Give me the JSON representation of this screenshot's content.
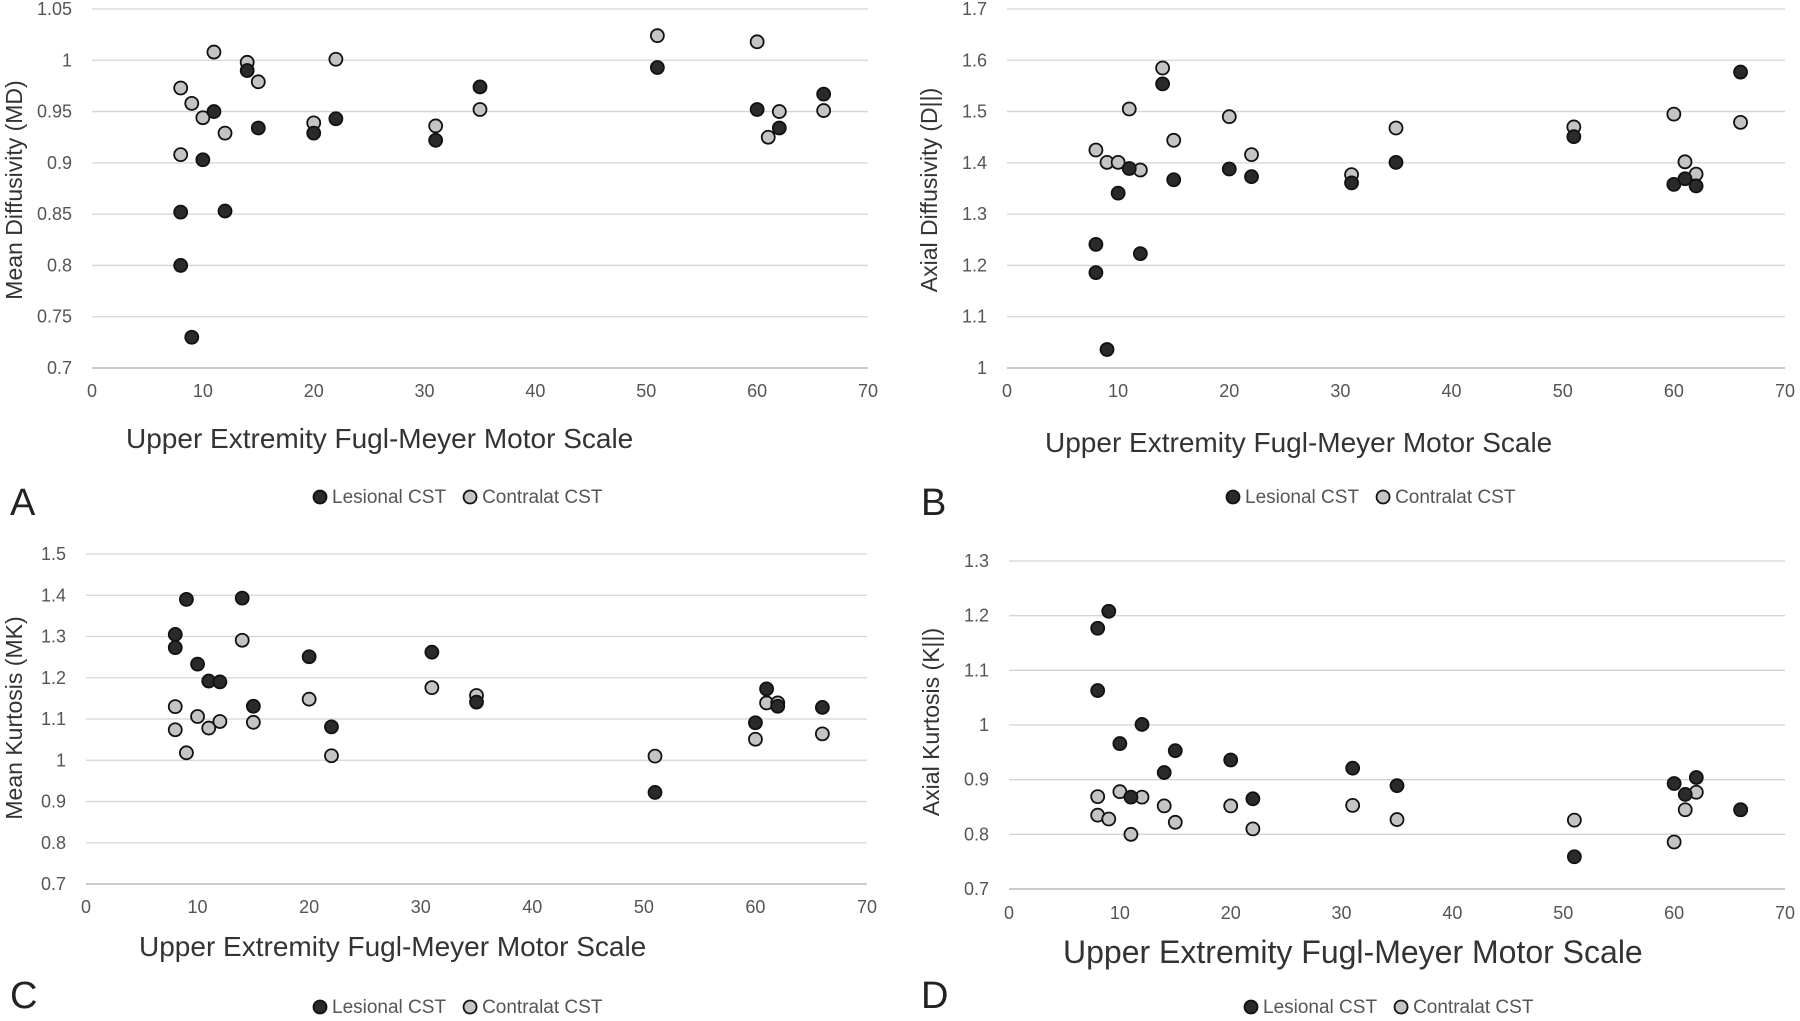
{
  "colors": {
    "lesional": "#2a2a2a",
    "contralat": "#c4c4c4",
    "marker_stroke": "#111111",
    "grid": "#d4d4d4",
    "axis": "#bdbdbd",
    "tick_text": "#555555",
    "label_text": "#333333"
  },
  "chart_data": [
    {
      "panel_letter": "A",
      "type": "scatter",
      "title": "",
      "xlabel": "Upper Extremity  Fugl-Meyer Motor Scale",
      "ylabel": "Mean Diffusivity (MD)",
      "xlim": [
        0,
        70
      ],
      "ylim": [
        0.7,
        1.05
      ],
      "xticks": [
        0,
        10,
        20,
        30,
        40,
        50,
        60,
        70
      ],
      "yticks": [
        "0.7",
        "0.75",
        "0.8",
        "0.85",
        "0.9",
        "0.95",
        "1",
        "1.05"
      ],
      "grid": "horizontal",
      "legend_position": "bottom",
      "series": [
        {
          "name": "Lesional CST",
          "color_key": "lesional",
          "points": [
            [
              8,
              0.852
            ],
            [
              8,
              0.8
            ],
            [
              9,
              0.73
            ],
            [
              10,
              0.903
            ],
            [
              11,
              0.95
            ],
            [
              12,
              0.853
            ],
            [
              14,
              0.99
            ],
            [
              15,
              0.934
            ],
            [
              20,
              0.929
            ],
            [
              22,
              0.943
            ],
            [
              31,
              0.922
            ],
            [
              35,
              0.974
            ],
            [
              51,
              0.993
            ],
            [
              60,
              0.952
            ],
            [
              62,
              0.934
            ],
            [
              66,
              0.967
            ]
          ]
        },
        {
          "name": "Contralat CST",
          "color_key": "contralat",
          "points": [
            [
              8,
              0.973
            ],
            [
              8,
              0.908
            ],
            [
              9,
              0.958
            ],
            [
              10,
              0.944
            ],
            [
              11,
              1.008
            ],
            [
              12,
              0.929
            ],
            [
              14,
              0.998
            ],
            [
              15,
              0.979
            ],
            [
              20,
              0.939
            ],
            [
              22,
              1.001
            ],
            [
              31,
              0.936
            ],
            [
              35,
              0.952
            ],
            [
              51,
              1.024
            ],
            [
              60,
              1.018
            ],
            [
              61,
              0.925
            ],
            [
              62,
              0.95
            ],
            [
              66,
              0.951
            ]
          ]
        }
      ]
    },
    {
      "panel_letter": "B",
      "type": "scatter",
      "title": "",
      "xlabel": "Upper Extremity  Fugl-Meyer Motor Scale",
      "ylabel": "Axial Diffusivity (D||)",
      "xlim": [
        0,
        70
      ],
      "ylim": [
        1.0,
        1.7
      ],
      "xticks": [
        0,
        10,
        20,
        30,
        40,
        50,
        60,
        70
      ],
      "yticks": [
        "1",
        "1.1",
        "1.2",
        "1.3",
        "1.4",
        "1.5",
        "1.6",
        "1.7"
      ],
      "grid": "horizontal",
      "legend_position": "bottom",
      "series": [
        {
          "name": "Lesional CST",
          "color_key": "lesional",
          "points": [
            [
              8,
              1.241
            ],
            [
              8,
              1.186
            ],
            [
              9,
              1.036
            ],
            [
              10,
              1.341
            ],
            [
              11,
              1.389
            ],
            [
              12,
              1.223
            ],
            [
              14,
              1.554
            ],
            [
              15,
              1.367
            ],
            [
              20,
              1.388
            ],
            [
              22,
              1.373
            ],
            [
              31,
              1.361
            ],
            [
              35,
              1.401
            ],
            [
              51,
              1.451
            ],
            [
              60,
              1.358
            ],
            [
              61,
              1.369
            ],
            [
              62,
              1.355
            ],
            [
              66,
              1.577
            ]
          ]
        },
        {
          "name": "Contralat CST",
          "color_key": "contralat",
          "points": [
            [
              8,
              1.425
            ],
            [
              9,
              1.401
            ],
            [
              10,
              1.401
            ],
            [
              11,
              1.505
            ],
            [
              12,
              1.386
            ],
            [
              14,
              1.585
            ],
            [
              15,
              1.444
            ],
            [
              20,
              1.49
            ],
            [
              22,
              1.416
            ],
            [
              31,
              1.377
            ],
            [
              35,
              1.468
            ],
            [
              51,
              1.47
            ],
            [
              60,
              1.495
            ],
            [
              61,
              1.402
            ],
            [
              62,
              1.378
            ],
            [
              66,
              1.479
            ]
          ]
        }
      ]
    },
    {
      "panel_letter": "C",
      "type": "scatter",
      "title": "",
      "xlabel": "Upper Extremity  Fugl-Meyer Motor Scale",
      "ylabel": "Mean Kurtosis (MK)",
      "xlim": [
        0,
        70
      ],
      "ylim": [
        0.7,
        1.5
      ],
      "xticks": [
        0,
        10,
        20,
        30,
        40,
        50,
        60,
        70
      ],
      "yticks": [
        "0.7",
        "0.8",
        "0.9",
        "1",
        "1.1",
        "1.2",
        "1.3",
        "1.4",
        "1.5"
      ],
      "grid": "horizontal",
      "legend_position": "bottom",
      "series": [
        {
          "name": "Lesional CST",
          "color_key": "lesional",
          "points": [
            [
              8,
              1.305
            ],
            [
              8,
              1.273
            ],
            [
              9,
              1.39
            ],
            [
              10,
              1.233
            ],
            [
              11,
              1.192
            ],
            [
              12,
              1.19
            ],
            [
              14,
              1.393
            ],
            [
              15,
              1.131
            ],
            [
              20,
              1.251
            ],
            [
              22,
              1.081
            ],
            [
              31,
              1.262
            ],
            [
              35,
              1.141
            ],
            [
              51,
              0.922
            ],
            [
              60,
              1.091
            ],
            [
              61,
              1.173
            ],
            [
              62,
              1.131
            ],
            [
              66,
              1.128
            ]
          ]
        },
        {
          "name": "Contralat CST",
          "color_key": "contralat",
          "points": [
            [
              8,
              1.13
            ],
            [
              8,
              1.074
            ],
            [
              9,
              1.018
            ],
            [
              10,
              1.106
            ],
            [
              11,
              1.078
            ],
            [
              12,
              1.094
            ],
            [
              14,
              1.291
            ],
            [
              15,
              1.092
            ],
            [
              20,
              1.148
            ],
            [
              22,
              1.011
            ],
            [
              31,
              1.176
            ],
            [
              35,
              1.157
            ],
            [
              51,
              1.01
            ],
            [
              60,
              1.051
            ],
            [
              61,
              1.139
            ],
            [
              62,
              1.139
            ],
            [
              66,
              1.064
            ]
          ]
        }
      ]
    },
    {
      "panel_letter": "D",
      "type": "scatter",
      "title": "",
      "xlabel": "Upper Extremity  Fugl-Meyer Motor Scale",
      "ylabel": "Axial Kurtosis (K||)",
      "xlim": [
        0,
        70
      ],
      "ylim": [
        0.7,
        1.3
      ],
      "xticks": [
        0,
        10,
        20,
        30,
        40,
        50,
        60,
        70
      ],
      "yticks": [
        "0.7",
        "0.8",
        "0.9",
        "1",
        "1.1",
        "1.2",
        "1.3"
      ],
      "grid": "horizontal",
      "legend_position": "bottom",
      "series": [
        {
          "name": "Lesional CST",
          "color_key": "lesional",
          "points": [
            [
              8,
              1.177
            ],
            [
              8,
              1.063
            ],
            [
              9,
              1.208
            ],
            [
              10,
              0.966
            ],
            [
              11,
              0.868
            ],
            [
              12,
              1.001
            ],
            [
              14,
              0.913
            ],
            [
              15,
              0.953
            ],
            [
              20,
              0.936
            ],
            [
              22,
              0.865
            ],
            [
              31,
              0.921
            ],
            [
              35,
              0.889
            ],
            [
              51,
              0.759
            ],
            [
              60,
              0.893
            ],
            [
              61,
              0.873
            ],
            [
              62,
              0.904
            ],
            [
              66,
              0.845
            ]
          ]
        },
        {
          "name": "Contralat CST",
          "color_key": "contralat",
          "points": [
            [
              8,
              0.869
            ],
            [
              8,
              0.835
            ],
            [
              9,
              0.828
            ],
            [
              10,
              0.878
            ],
            [
              11,
              0.8
            ],
            [
              12,
              0.868
            ],
            [
              14,
              0.852
            ],
            [
              15,
              0.822
            ],
            [
              20,
              0.852
            ],
            [
              22,
              0.81
            ],
            [
              31,
              0.853
            ],
            [
              35,
              0.827
            ],
            [
              51,
              0.826
            ],
            [
              60,
              0.786
            ],
            [
              61,
              0.845
            ],
            [
              62,
              0.877
            ],
            [
              66,
              0.845
            ]
          ]
        }
      ]
    }
  ]
}
